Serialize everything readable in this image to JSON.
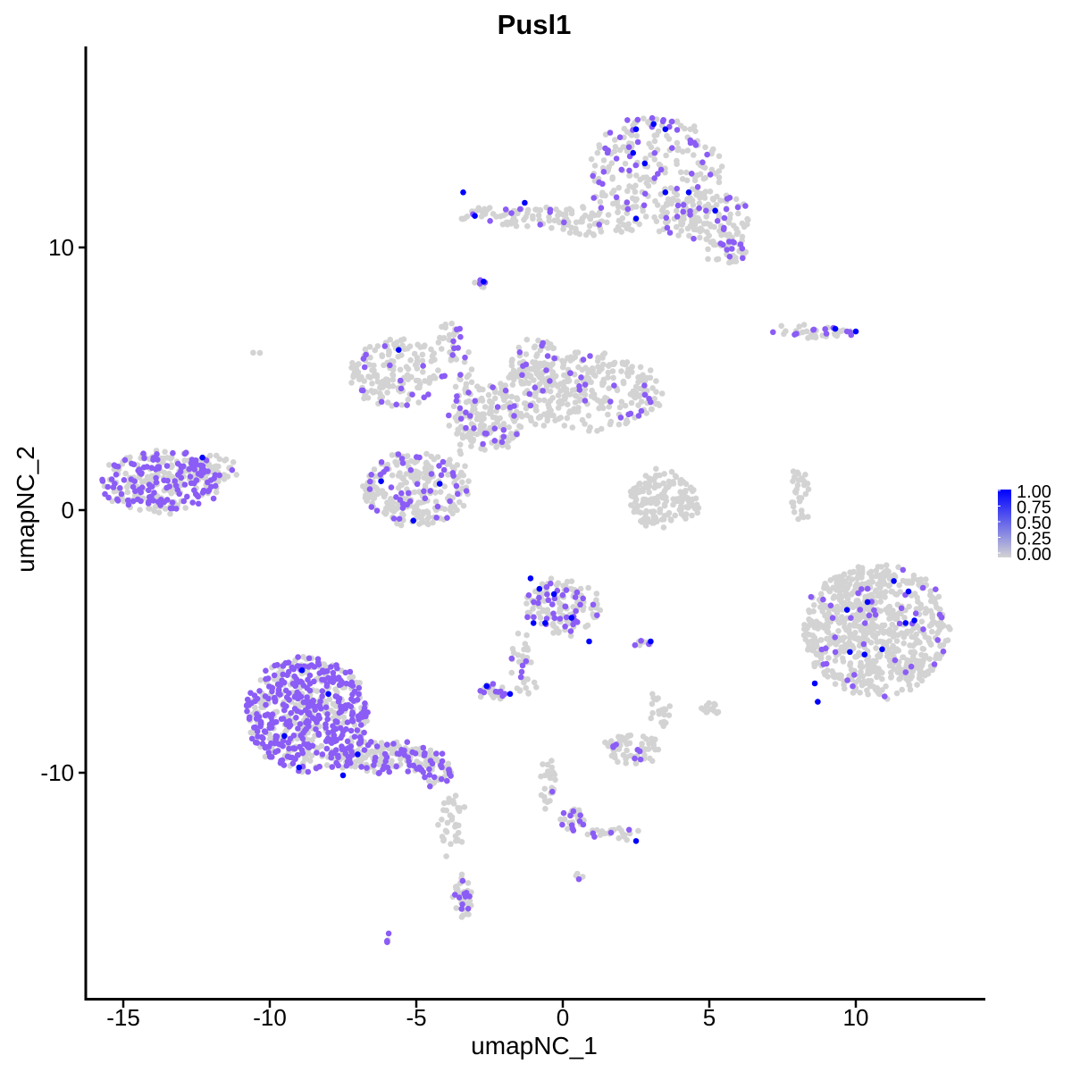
{
  "chart_data": {
    "type": "scatter",
    "title": "Pusl1",
    "xlabel": "umapNC_1",
    "ylabel": "umapNC_2",
    "xlim": [
      -16.5,
      14.2
    ],
    "ylim": [
      -17.6,
      17.6
    ],
    "x_ticks": [
      -15,
      -10,
      -5,
      0,
      5,
      10
    ],
    "x_tick_labels": [
      "-15",
      "-10",
      "-5",
      "0",
      "5",
      "10"
    ],
    "y_ticks": [
      -10,
      0,
      10
    ],
    "y_tick_labels": [
      "-10",
      "0",
      "10"
    ],
    "grid": false,
    "legend": {
      "placement": "right",
      "type": "colorbar",
      "ticks": [
        "1.00",
        "0.75",
        "0.50",
        "0.25",
        "0.00"
      ],
      "low_color": "#d3d3d3",
      "high_color": "#0000ff"
    },
    "expression_colors": {
      "zero": "#d3d3d3",
      "medium": "#8b5cf6",
      "high": "#0000ff"
    },
    "clusters": [
      {
        "cx": 3.2,
        "cy": 12.8,
        "rx": 2.3,
        "ry": 2.2,
        "n": 260,
        "frac": 0.18
      },
      {
        "cx": 4.8,
        "cy": 11.2,
        "rx": 1.6,
        "ry": 0.9,
        "n": 110,
        "frac": 0.15
      },
      {
        "cx": 5.5,
        "cy": 10.1,
        "rx": 0.8,
        "ry": 0.8,
        "n": 50,
        "frac": 0.2
      },
      {
        "cx": -1.0,
        "cy": 11.2,
        "rx": 2.6,
        "ry": 0.4,
        "n": 90,
        "frac": 0.12
      },
      {
        "cx": 1.0,
        "cy": 10.8,
        "rx": 1.5,
        "ry": 0.3,
        "n": 40,
        "frac": 0.1
      },
      {
        "cx": -2.8,
        "cy": 8.7,
        "rx": 0.15,
        "ry": 0.4,
        "n": 8,
        "frac": 0.2
      },
      {
        "cx": 8.5,
        "cy": 6.8,
        "rx": 1.5,
        "ry": 0.25,
        "n": 40,
        "frac": 0.3
      },
      {
        "cx": -5.6,
        "cy": 5.2,
        "rx": 1.7,
        "ry": 1.3,
        "n": 160,
        "frac": 0.12
      },
      {
        "cx": 0.6,
        "cy": 4.5,
        "rx": 2.8,
        "ry": 1.5,
        "n": 320,
        "frac": 0.08
      },
      {
        "cx": -0.9,
        "cy": 5.5,
        "rx": 0.9,
        "ry": 1.0,
        "n": 70,
        "frac": 0.2
      },
      {
        "cx": -2.6,
        "cy": 3.5,
        "rx": 1.3,
        "ry": 1.3,
        "n": 150,
        "frac": 0.15
      },
      {
        "cx": -5.0,
        "cy": 0.8,
        "rx": 1.8,
        "ry": 1.4,
        "n": 280,
        "frac": 0.18
      },
      {
        "cx": -3.8,
        "cy": 6.5,
        "rx": 0.4,
        "ry": 0.8,
        "n": 30,
        "frac": 0.15
      },
      {
        "cx": -13.7,
        "cy": 1.1,
        "rx": 2.1,
        "ry": 1.2,
        "n": 300,
        "frac": 0.35
      },
      {
        "cx": -11.9,
        "cy": 1.6,
        "rx": 0.8,
        "ry": 0.5,
        "n": 40,
        "frac": 0.2
      },
      {
        "cx": 3.4,
        "cy": 0.4,
        "rx": 1.2,
        "ry": 1.1,
        "n": 160,
        "frac": 0.0
      },
      {
        "cx": 8.1,
        "cy": 0.5,
        "rx": 0.3,
        "ry": 1.2,
        "n": 30,
        "frac": 0.0
      },
      {
        "cx": 10.7,
        "cy": -4.6,
        "rx": 2.5,
        "ry": 2.5,
        "n": 750,
        "frac": 0.06
      },
      {
        "cx": 0.0,
        "cy": -3.7,
        "rx": 1.3,
        "ry": 1.1,
        "n": 140,
        "frac": 0.25
      },
      {
        "cx": -1.3,
        "cy": -5.8,
        "rx": 0.5,
        "ry": 1.2,
        "n": 35,
        "frac": 0.15
      },
      {
        "cx": -2.4,
        "cy": -6.9,
        "rx": 0.5,
        "ry": 0.3,
        "n": 25,
        "frac": 0.3
      },
      {
        "cx": 2.8,
        "cy": -5.1,
        "rx": 0.3,
        "ry": 0.15,
        "n": 8,
        "frac": 0.5
      },
      {
        "cx": -8.7,
        "cy": -7.8,
        "rx": 2.1,
        "ry": 2.2,
        "n": 620,
        "frac": 0.55
      },
      {
        "cx": -6.0,
        "cy": -9.4,
        "rx": 1.8,
        "ry": 0.6,
        "n": 170,
        "frac": 0.3
      },
      {
        "cx": -4.3,
        "cy": -10.0,
        "rx": 0.6,
        "ry": 0.5,
        "n": 40,
        "frac": 0.4
      },
      {
        "cx": -3.8,
        "cy": -12.0,
        "rx": 0.4,
        "ry": 1.3,
        "n": 35,
        "frac": 0.0
      },
      {
        "cx": -3.4,
        "cy": -14.7,
        "rx": 0.35,
        "ry": 0.8,
        "n": 40,
        "frac": 0.25
      },
      {
        "cx": 2.4,
        "cy": -9.1,
        "rx": 1.0,
        "ry": 0.6,
        "n": 70,
        "frac": 0.15
      },
      {
        "cx": 3.3,
        "cy": -7.6,
        "rx": 0.35,
        "ry": 0.7,
        "n": 20,
        "frac": 0.0
      },
      {
        "cx": 5.0,
        "cy": -7.5,
        "rx": 0.3,
        "ry": 0.3,
        "n": 15,
        "frac": 0.0
      },
      {
        "cx": -0.5,
        "cy": -10.6,
        "rx": 0.25,
        "ry": 1.2,
        "n": 25,
        "frac": 0.1
      },
      {
        "cx": 0.3,
        "cy": -11.8,
        "rx": 0.45,
        "ry": 0.4,
        "n": 25,
        "frac": 0.3
      },
      {
        "cx": 1.7,
        "cy": -12.3,
        "rx": 0.9,
        "ry": 0.25,
        "n": 25,
        "frac": 0.15
      },
      {
        "cx": 0.6,
        "cy": -14.0,
        "rx": 0.15,
        "ry": 0.15,
        "n": 4,
        "frac": 0.8
      },
      {
        "cx": -6.0,
        "cy": -16.3,
        "rx": 0.15,
        "ry": 0.15,
        "n": 4,
        "frac": 0.8
      },
      {
        "cx": -10.5,
        "cy": 6.1,
        "rx": 0.1,
        "ry": 0.1,
        "n": 2,
        "frac": 0.0
      },
      {
        "cx": -3.3,
        "cy": 4.0,
        "rx": 0.3,
        "ry": 2.8,
        "n": 30,
        "frac": 0.15
      }
    ],
    "high_points": [
      [
        2.5,
        14.5
      ],
      [
        3.1,
        14.7
      ],
      [
        3.5,
        14.5
      ],
      [
        2.4,
        13.6
      ],
      [
        2.8,
        13.2
      ],
      [
        3.5,
        12.1
      ],
      [
        4.3,
        12.1
      ],
      [
        5.2,
        11.4
      ],
      [
        2.5,
        11.1
      ],
      [
        -3.4,
        12.1
      ],
      [
        -3.0,
        11.2
      ],
      [
        -1.3,
        11.7
      ],
      [
        -2.7,
        8.7
      ],
      [
        9.3,
        6.9
      ],
      [
        10.0,
        6.8
      ],
      [
        -5.6,
        6.1
      ],
      [
        -12.3,
        2.0
      ],
      [
        -6.2,
        1.1
      ],
      [
        -5.1,
        -0.4
      ],
      [
        -4.2,
        1.0
      ],
      [
        -1.1,
        -2.6
      ],
      [
        -0.8,
        -3.0
      ],
      [
        -0.3,
        -3.2
      ],
      [
        0.3,
        -4.1
      ],
      [
        0.9,
        -5.0
      ],
      [
        -1.0,
        -4.3
      ],
      [
        -0.6,
        -4.3
      ],
      [
        -2.6,
        -6.7
      ],
      [
        -1.8,
        -7.0
      ],
      [
        3.0,
        -5.0
      ],
      [
        -8.9,
        -6.1
      ],
      [
        -9.5,
        -8.6
      ],
      [
        -9.0,
        -9.8
      ],
      [
        -8.0,
        -7.0
      ],
      [
        -7.0,
        -9.3
      ],
      [
        -7.5,
        -10.1
      ],
      [
        2.5,
        -12.6
      ],
      [
        9.7,
        -3.8
      ],
      [
        10.4,
        -3.5
      ],
      [
        11.3,
        -2.7
      ],
      [
        11.8,
        -3.1
      ],
      [
        9.8,
        -5.4
      ],
      [
        10.3,
        -5.5
      ],
      [
        10.9,
        -5.3
      ],
      [
        11.7,
        -4.3
      ],
      [
        12.0,
        -4.2
      ],
      [
        8.7,
        -7.3
      ],
      [
        8.6,
        -6.6
      ]
    ]
  }
}
